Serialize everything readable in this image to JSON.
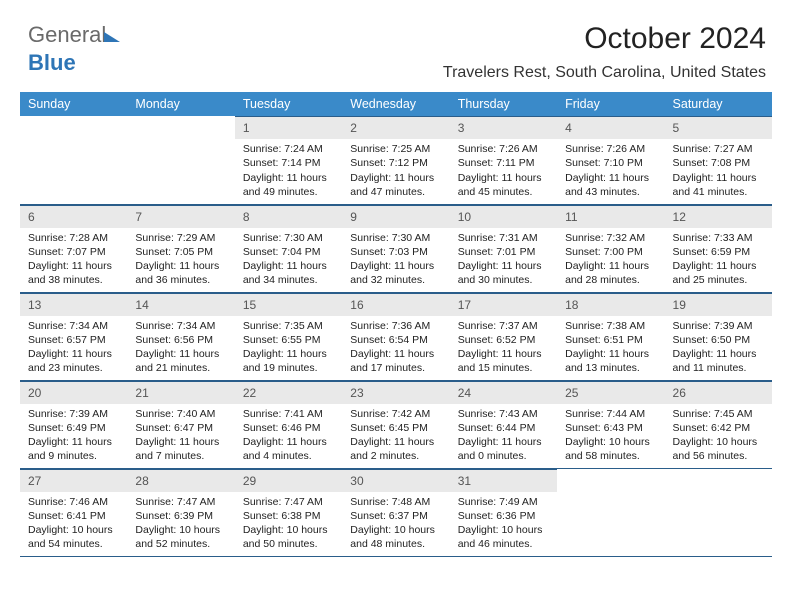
{
  "logo": {
    "part1": "General",
    "part2": "Blue"
  },
  "title": "October 2024",
  "subtitle": "Travelers Rest, South Carolina, United States",
  "colors": {
    "header_bg": "#3a8ac9",
    "header_fg": "#ffffff",
    "daynum_bg": "#e9e9e9",
    "border": "#2a5d8a"
  },
  "weekdays": [
    "Sunday",
    "Monday",
    "Tuesday",
    "Wednesday",
    "Thursday",
    "Friday",
    "Saturday"
  ],
  "weeks": [
    [
      null,
      null,
      {
        "n": "1",
        "sr": "Sunrise: 7:24 AM",
        "ss": "Sunset: 7:14 PM",
        "dl1": "Daylight: 11 hours",
        "dl2": "and 49 minutes."
      },
      {
        "n": "2",
        "sr": "Sunrise: 7:25 AM",
        "ss": "Sunset: 7:12 PM",
        "dl1": "Daylight: 11 hours",
        "dl2": "and 47 minutes."
      },
      {
        "n": "3",
        "sr": "Sunrise: 7:26 AM",
        "ss": "Sunset: 7:11 PM",
        "dl1": "Daylight: 11 hours",
        "dl2": "and 45 minutes."
      },
      {
        "n": "4",
        "sr": "Sunrise: 7:26 AM",
        "ss": "Sunset: 7:10 PM",
        "dl1": "Daylight: 11 hours",
        "dl2": "and 43 minutes."
      },
      {
        "n": "5",
        "sr": "Sunrise: 7:27 AM",
        "ss": "Sunset: 7:08 PM",
        "dl1": "Daylight: 11 hours",
        "dl2": "and 41 minutes."
      }
    ],
    [
      {
        "n": "6",
        "sr": "Sunrise: 7:28 AM",
        "ss": "Sunset: 7:07 PM",
        "dl1": "Daylight: 11 hours",
        "dl2": "and 38 minutes."
      },
      {
        "n": "7",
        "sr": "Sunrise: 7:29 AM",
        "ss": "Sunset: 7:05 PM",
        "dl1": "Daylight: 11 hours",
        "dl2": "and 36 minutes."
      },
      {
        "n": "8",
        "sr": "Sunrise: 7:30 AM",
        "ss": "Sunset: 7:04 PM",
        "dl1": "Daylight: 11 hours",
        "dl2": "and 34 minutes."
      },
      {
        "n": "9",
        "sr": "Sunrise: 7:30 AM",
        "ss": "Sunset: 7:03 PM",
        "dl1": "Daylight: 11 hours",
        "dl2": "and 32 minutes."
      },
      {
        "n": "10",
        "sr": "Sunrise: 7:31 AM",
        "ss": "Sunset: 7:01 PM",
        "dl1": "Daylight: 11 hours",
        "dl2": "and 30 minutes."
      },
      {
        "n": "11",
        "sr": "Sunrise: 7:32 AM",
        "ss": "Sunset: 7:00 PM",
        "dl1": "Daylight: 11 hours",
        "dl2": "and 28 minutes."
      },
      {
        "n": "12",
        "sr": "Sunrise: 7:33 AM",
        "ss": "Sunset: 6:59 PM",
        "dl1": "Daylight: 11 hours",
        "dl2": "and 25 minutes."
      }
    ],
    [
      {
        "n": "13",
        "sr": "Sunrise: 7:34 AM",
        "ss": "Sunset: 6:57 PM",
        "dl1": "Daylight: 11 hours",
        "dl2": "and 23 minutes."
      },
      {
        "n": "14",
        "sr": "Sunrise: 7:34 AM",
        "ss": "Sunset: 6:56 PM",
        "dl1": "Daylight: 11 hours",
        "dl2": "and 21 minutes."
      },
      {
        "n": "15",
        "sr": "Sunrise: 7:35 AM",
        "ss": "Sunset: 6:55 PM",
        "dl1": "Daylight: 11 hours",
        "dl2": "and 19 minutes."
      },
      {
        "n": "16",
        "sr": "Sunrise: 7:36 AM",
        "ss": "Sunset: 6:54 PM",
        "dl1": "Daylight: 11 hours",
        "dl2": "and 17 minutes."
      },
      {
        "n": "17",
        "sr": "Sunrise: 7:37 AM",
        "ss": "Sunset: 6:52 PM",
        "dl1": "Daylight: 11 hours",
        "dl2": "and 15 minutes."
      },
      {
        "n": "18",
        "sr": "Sunrise: 7:38 AM",
        "ss": "Sunset: 6:51 PM",
        "dl1": "Daylight: 11 hours",
        "dl2": "and 13 minutes."
      },
      {
        "n": "19",
        "sr": "Sunrise: 7:39 AM",
        "ss": "Sunset: 6:50 PM",
        "dl1": "Daylight: 11 hours",
        "dl2": "and 11 minutes."
      }
    ],
    [
      {
        "n": "20",
        "sr": "Sunrise: 7:39 AM",
        "ss": "Sunset: 6:49 PM",
        "dl1": "Daylight: 11 hours",
        "dl2": "and 9 minutes."
      },
      {
        "n": "21",
        "sr": "Sunrise: 7:40 AM",
        "ss": "Sunset: 6:47 PM",
        "dl1": "Daylight: 11 hours",
        "dl2": "and 7 minutes."
      },
      {
        "n": "22",
        "sr": "Sunrise: 7:41 AM",
        "ss": "Sunset: 6:46 PM",
        "dl1": "Daylight: 11 hours",
        "dl2": "and 4 minutes."
      },
      {
        "n": "23",
        "sr": "Sunrise: 7:42 AM",
        "ss": "Sunset: 6:45 PM",
        "dl1": "Daylight: 11 hours",
        "dl2": "and 2 minutes."
      },
      {
        "n": "24",
        "sr": "Sunrise: 7:43 AM",
        "ss": "Sunset: 6:44 PM",
        "dl1": "Daylight: 11 hours",
        "dl2": "and 0 minutes."
      },
      {
        "n": "25",
        "sr": "Sunrise: 7:44 AM",
        "ss": "Sunset: 6:43 PM",
        "dl1": "Daylight: 10 hours",
        "dl2": "and 58 minutes."
      },
      {
        "n": "26",
        "sr": "Sunrise: 7:45 AM",
        "ss": "Sunset: 6:42 PM",
        "dl1": "Daylight: 10 hours",
        "dl2": "and 56 minutes."
      }
    ],
    [
      {
        "n": "27",
        "sr": "Sunrise: 7:46 AM",
        "ss": "Sunset: 6:41 PM",
        "dl1": "Daylight: 10 hours",
        "dl2": "and 54 minutes."
      },
      {
        "n": "28",
        "sr": "Sunrise: 7:47 AM",
        "ss": "Sunset: 6:39 PM",
        "dl1": "Daylight: 10 hours",
        "dl2": "and 52 minutes."
      },
      {
        "n": "29",
        "sr": "Sunrise: 7:47 AM",
        "ss": "Sunset: 6:38 PM",
        "dl1": "Daylight: 10 hours",
        "dl2": "and 50 minutes."
      },
      {
        "n": "30",
        "sr": "Sunrise: 7:48 AM",
        "ss": "Sunset: 6:37 PM",
        "dl1": "Daylight: 10 hours",
        "dl2": "and 48 minutes."
      },
      {
        "n": "31",
        "sr": "Sunrise: 7:49 AM",
        "ss": "Sunset: 6:36 PM",
        "dl1": "Daylight: 10 hours",
        "dl2": "and 46 minutes."
      },
      null,
      null
    ]
  ]
}
